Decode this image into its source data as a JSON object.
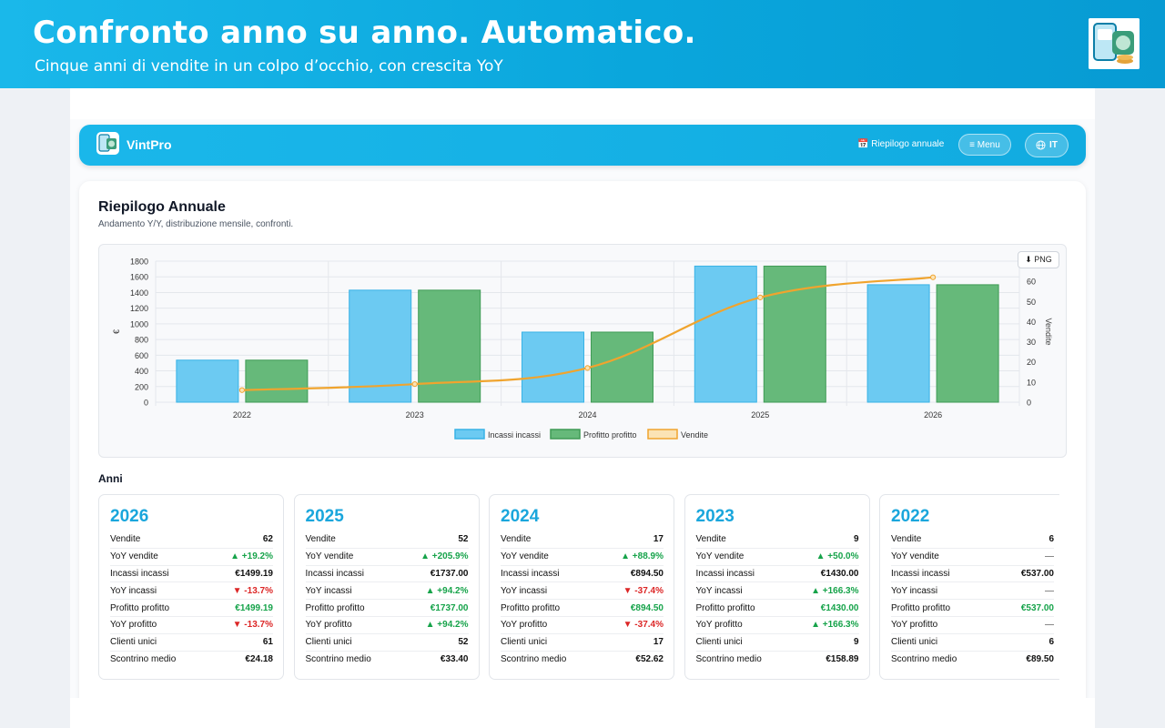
{
  "banner": {
    "title": "Confronto anno su anno. Automatico.",
    "subtitle": "Cinque anni di vendite in un colpo d’occhio, con crescita YoY"
  },
  "app": {
    "name": "VintPro",
    "nav_link": "📅 Riepilogo annuale",
    "menu_label": "≡ Menu",
    "lang_label": "IT"
  },
  "page": {
    "title": "Riepilogo Annuale",
    "subtitle": "Andamento Y/Y, distribuzione mensile, confronti.",
    "png_button": "⬇ PNG",
    "years_title": "Anni"
  },
  "colors": {
    "accent": "#1aa6dc",
    "incassi": "#6ccaf2",
    "profitto": "#66b97a",
    "vendite": "#f0a42e",
    "up": "#16a34a",
    "down": "#dc2626"
  },
  "chart_data": {
    "type": "bar",
    "categories": [
      "2022",
      "2023",
      "2024",
      "2025",
      "2026"
    ],
    "series": [
      {
        "name": "Incassi incassi",
        "type": "bar",
        "axis": "left",
        "values": [
          537.0,
          1430.0,
          894.5,
          1737.0,
          1499.19
        ]
      },
      {
        "name": "Profitto profitto",
        "type": "bar",
        "axis": "left",
        "values": [
          537.0,
          1430.0,
          894.5,
          1737.0,
          1499.19
        ]
      },
      {
        "name": "Vendite",
        "type": "line",
        "axis": "right",
        "values": [
          6,
          9,
          17,
          52,
          62
        ]
      }
    ],
    "ylabel": "€",
    "y2label": "Vendite",
    "ylim": [
      0,
      1800
    ],
    "y2lim": [
      0,
      70
    ],
    "yticks": [
      "0",
      "200",
      "400",
      "600",
      "800",
      "1000",
      "1200",
      "1400",
      "1600",
      "1800"
    ],
    "y2ticks": [
      "0",
      "10",
      "20",
      "30",
      "40",
      "50",
      "60"
    ],
    "legend": "bottom",
    "grid": true
  },
  "years": [
    {
      "year": "2026",
      "rows": [
        {
          "label": "Vendite",
          "value": "62",
          "cls": ""
        },
        {
          "label": "YoY vendite",
          "value": "▲ +19.2%",
          "cls": "up"
        },
        {
          "label": "Incassi incassi",
          "value": "€1499.19",
          "cls": ""
        },
        {
          "label": "YoY incassi",
          "value": "▼ -13.7%",
          "cls": "down"
        },
        {
          "label": "Profitto profitto",
          "value": "€1499.19",
          "cls": "pos"
        },
        {
          "label": "YoY profitto",
          "value": "▼ -13.7%",
          "cls": "down"
        },
        {
          "label": "Clienti unici",
          "value": "61",
          "cls": ""
        },
        {
          "label": "Scontrino medio",
          "value": "€24.18",
          "cls": ""
        }
      ]
    },
    {
      "year": "2025",
      "rows": [
        {
          "label": "Vendite",
          "value": "52",
          "cls": ""
        },
        {
          "label": "YoY vendite",
          "value": "▲ +205.9%",
          "cls": "up"
        },
        {
          "label": "Incassi incassi",
          "value": "€1737.00",
          "cls": ""
        },
        {
          "label": "YoY incassi",
          "value": "▲ +94.2%",
          "cls": "up"
        },
        {
          "label": "Profitto profitto",
          "value": "€1737.00",
          "cls": "pos"
        },
        {
          "label": "YoY profitto",
          "value": "▲ +94.2%",
          "cls": "up"
        },
        {
          "label": "Clienti unici",
          "value": "52",
          "cls": ""
        },
        {
          "label": "Scontrino medio",
          "value": "€33.40",
          "cls": ""
        }
      ]
    },
    {
      "year": "2024",
      "rows": [
        {
          "label": "Vendite",
          "value": "17",
          "cls": ""
        },
        {
          "label": "YoY vendite",
          "value": "▲ +88.9%",
          "cls": "up"
        },
        {
          "label": "Incassi incassi",
          "value": "€894.50",
          "cls": ""
        },
        {
          "label": "YoY incassi",
          "value": "▼ -37.4%",
          "cls": "down"
        },
        {
          "label": "Profitto profitto",
          "value": "€894.50",
          "cls": "pos"
        },
        {
          "label": "YoY profitto",
          "value": "▼ -37.4%",
          "cls": "down"
        },
        {
          "label": "Clienti unici",
          "value": "17",
          "cls": ""
        },
        {
          "label": "Scontrino medio",
          "value": "€52.62",
          "cls": ""
        }
      ]
    },
    {
      "year": "2023",
      "rows": [
        {
          "label": "Vendite",
          "value": "9",
          "cls": ""
        },
        {
          "label": "YoY vendite",
          "value": "▲ +50.0%",
          "cls": "up"
        },
        {
          "label": "Incassi incassi",
          "value": "€1430.00",
          "cls": ""
        },
        {
          "label": "YoY incassi",
          "value": "▲ +166.3%",
          "cls": "up"
        },
        {
          "label": "Profitto profitto",
          "value": "€1430.00",
          "cls": "pos"
        },
        {
          "label": "YoY profitto",
          "value": "▲ +166.3%",
          "cls": "up"
        },
        {
          "label": "Clienti unici",
          "value": "9",
          "cls": ""
        },
        {
          "label": "Scontrino medio",
          "value": "€158.89",
          "cls": ""
        }
      ]
    },
    {
      "year": "2022",
      "rows": [
        {
          "label": "Vendite",
          "value": "6",
          "cls": ""
        },
        {
          "label": "YoY vendite",
          "value": "—",
          "cls": "neutral"
        },
        {
          "label": "Incassi incassi",
          "value": "€537.00",
          "cls": ""
        },
        {
          "label": "YoY incassi",
          "value": "—",
          "cls": "neutral"
        },
        {
          "label": "Profitto profitto",
          "value": "€537.00",
          "cls": "pos"
        },
        {
          "label": "YoY profitto",
          "value": "—",
          "cls": "neutral"
        },
        {
          "label": "Clienti unici",
          "value": "6",
          "cls": ""
        },
        {
          "label": "Scontrino medio",
          "value": "€89.50",
          "cls": ""
        }
      ]
    }
  ]
}
